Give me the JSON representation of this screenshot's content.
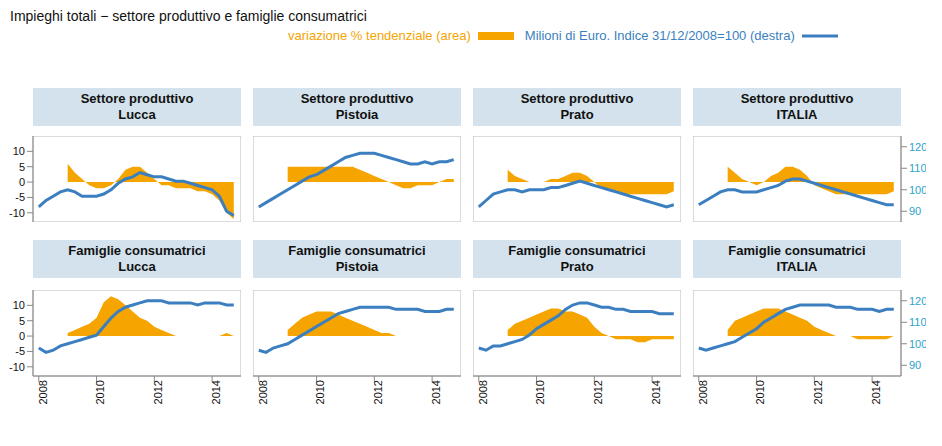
{
  "title": "Impieghi totali − settore produttivo e famiglie consumatrici",
  "chart_data": [
    {
      "title": "Settore produttivo\nLucca",
      "type": "area",
      "tick_labels": "y",
      "x": [
        2008,
        2008.25,
        2008.5,
        2008.75,
        2009,
        2009.25,
        2009.5,
        2009.75,
        2010,
        2010.25,
        2010.5,
        2010.75,
        2011,
        2011.25,
        2011.5,
        2011.75,
        2012,
        2012.25,
        2012.5,
        2012.75,
        2013,
        2013.25,
        2013.5,
        2013.75,
        2014,
        2014.25,
        2014.5,
        2014.75
      ],
      "xlim": [
        2007.8,
        2015
      ],
      "xticks": [
        2008,
        2010,
        2012,
        2014
      ],
      "ylim": [
        -13,
        15
      ],
      "yticks": [
        -10,
        -5,
        0,
        5,
        10
      ],
      "y2lim": [
        85,
        125
      ],
      "y2ticks": [
        90,
        100,
        110,
        120
      ],
      "series": [
        {
          "name": "variazione % tendenziale (area)",
          "type": "area",
          "color": "#f5a400",
          "values": [
            null,
            null,
            null,
            null,
            6,
            3,
            1,
            -1,
            -2,
            -2,
            -1,
            1,
            4,
            5,
            5,
            3,
            1,
            -1,
            -1,
            -2,
            -2,
            -2,
            -3,
            -3,
            -4,
            -6,
            -10,
            -12
          ]
        },
        {
          "name": "Milioni di Euro. Indice 31/12/2008=100 (destra)",
          "type": "line",
          "axis": "y2",
          "color": "#3b7fc0",
          "values": [
            92,
            95,
            97,
            99,
            100,
            99,
            97,
            97,
            97,
            98,
            100,
            103,
            105,
            106,
            108,
            107,
            106,
            106,
            105,
            104,
            104,
            103,
            102,
            101,
            100,
            97,
            90,
            88
          ]
        }
      ]
    },
    {
      "title": "Settore produttivo\nPistoia",
      "type": "area",
      "tick_labels": false,
      "x": [
        2008,
        2008.25,
        2008.5,
        2008.75,
        2009,
        2009.25,
        2009.5,
        2009.75,
        2010,
        2010.25,
        2010.5,
        2010.75,
        2011,
        2011.25,
        2011.5,
        2011.75,
        2012,
        2012.25,
        2012.5,
        2012.75,
        2013,
        2013.25,
        2013.5,
        2013.75,
        2014,
        2014.25,
        2014.5,
        2014.75
      ],
      "xlim": [
        2007.8,
        2015
      ],
      "xticks": [
        2008,
        2010,
        2012,
        2014
      ],
      "ylim": [
        -13,
        15
      ],
      "yticks": [
        -10,
        -5,
        0,
        5,
        10
      ],
      "y2lim": [
        85,
        125
      ],
      "y2ticks": [
        90,
        100,
        110,
        120
      ],
      "series": [
        {
          "name": "variazione % tendenziale (area)",
          "type": "area",
          "color": "#f5a400",
          "values": [
            null,
            null,
            null,
            null,
            5,
            5,
            5,
            5,
            5,
            5,
            5,
            5,
            5,
            5,
            4,
            3,
            2,
            1,
            0,
            -1,
            -2,
            -2,
            -1,
            -1,
            -1,
            0,
            1,
            1
          ]
        },
        {
          "name": "Milioni di Euro. Indice 31/12/2008=100 (destra)",
          "type": "line",
          "axis": "y2",
          "color": "#3b7fc0",
          "values": [
            92,
            94,
            96,
            98,
            100,
            102,
            104,
            106,
            107,
            109,
            111,
            113,
            115,
            116,
            117,
            117,
            117,
            116,
            115,
            114,
            113,
            112,
            112,
            113,
            112,
            113,
            113,
            114
          ]
        }
      ]
    },
    {
      "title": "Settore produttivo\nPrato",
      "type": "area",
      "tick_labels": false,
      "x": [
        2008,
        2008.25,
        2008.5,
        2008.75,
        2009,
        2009.25,
        2009.5,
        2009.75,
        2010,
        2010.25,
        2010.5,
        2010.75,
        2011,
        2011.25,
        2011.5,
        2011.75,
        2012,
        2012.25,
        2012.5,
        2012.75,
        2013,
        2013.25,
        2013.5,
        2013.75,
        2014,
        2014.25,
        2014.5,
        2014.75
      ],
      "xlim": [
        2007.8,
        2015
      ],
      "xticks": [
        2008,
        2010,
        2012,
        2014
      ],
      "ylim": [
        -13,
        15
      ],
      "yticks": [
        -10,
        -5,
        0,
        5,
        10
      ],
      "y2lim": [
        85,
        125
      ],
      "y2ticks": [
        90,
        100,
        110,
        120
      ],
      "series": [
        {
          "name": "variazione % tendenziale (area)",
          "type": "area",
          "color": "#f5a400",
          "values": [
            null,
            null,
            null,
            null,
            4,
            2,
            1,
            0,
            0,
            0,
            1,
            1,
            2,
            3,
            3,
            2,
            0,
            -2,
            -2,
            -3,
            -4,
            -4,
            -4,
            -4,
            -4,
            -4,
            -4,
            -3
          ]
        },
        {
          "name": "Milioni di Euro. Indice 31/12/2008=100 (destra)",
          "type": "line",
          "axis": "y2",
          "color": "#3b7fc0",
          "values": [
            92,
            95,
            98,
            99,
            100,
            100,
            99,
            100,
            100,
            100,
            101,
            101,
            102,
            103,
            104,
            103,
            102,
            101,
            100,
            99,
            98,
            97,
            96,
            95,
            94,
            93,
            92,
            93
          ]
        }
      ]
    },
    {
      "title": "Settore produttivo\nITALIA",
      "type": "area",
      "tick_labels": "y",
      "x": [
        2008,
        2008.25,
        2008.5,
        2008.75,
        2009,
        2009.25,
        2009.5,
        2009.75,
        2010,
        2010.25,
        2010.5,
        2010.75,
        2011,
        2011.25,
        2011.5,
        2011.75,
        2012,
        2012.25,
        2012.5,
        2012.75,
        2013,
        2013.25,
        2013.5,
        2013.75,
        2014,
        2014.25,
        2014.5,
        2014.75
      ],
      "xlim": [
        2007.8,
        2015
      ],
      "xticks": [
        2008,
        2010,
        2012,
        2014
      ],
      "ylim": [
        -13,
        15
      ],
      "yticks": [
        -10,
        -5,
        0,
        5,
        10
      ],
      "y2lim": [
        85,
        125
      ],
      "y2ticks": [
        90,
        100,
        110,
        120
      ],
      "series": [
        {
          "name": "variazione % tendenziale (area)",
          "type": "area",
          "color": "#f5a400",
          "values": [
            null,
            null,
            null,
            null,
            5,
            3,
            1,
            0,
            -1,
            0,
            2,
            3,
            5,
            5,
            4,
            2,
            -1,
            -2,
            -3,
            -4,
            -4,
            -4,
            -4,
            -4,
            -4,
            -4,
            -4,
            -3
          ]
        },
        {
          "name": "Milioni di Euro. Indice 31/12/2008=100 (destra)",
          "type": "line",
          "axis": "y2",
          "color": "#3b7fc0",
          "values": [
            93,
            95,
            97,
            99,
            100,
            100,
            99,
            99,
            99,
            100,
            101,
            102,
            104,
            105,
            105,
            104,
            103,
            102,
            101,
            100,
            99,
            98,
            97,
            96,
            95,
            94,
            93,
            93
          ]
        }
      ]
    },
    {
      "title": "Famiglie consumatrici\nLucca",
      "type": "area",
      "tick_labels": true,
      "x": [
        2008,
        2008.25,
        2008.5,
        2008.75,
        2009,
        2009.25,
        2009.5,
        2009.75,
        2010,
        2010.25,
        2010.5,
        2010.75,
        2011,
        2011.25,
        2011.5,
        2011.75,
        2012,
        2012.25,
        2012.5,
        2012.75,
        2013,
        2013.25,
        2013.5,
        2013.75,
        2014,
        2014.25,
        2014.5,
        2014.75
      ],
      "xlim": [
        2007.8,
        2015
      ],
      "xticks": [
        2008,
        2010,
        2012,
        2014
      ],
      "ylim": [
        -13,
        15
      ],
      "yticks": [
        -10,
        -5,
        0,
        5,
        10
      ],
      "y2lim": [
        85,
        125
      ],
      "y2ticks": [
        90,
        100,
        110,
        120
      ],
      "series": [
        {
          "name": "variazione % tendenziale (area)",
          "type": "area",
          "color": "#f5a400",
          "values": [
            null,
            null,
            null,
            null,
            1,
            2,
            3,
            4,
            6,
            11,
            13,
            12,
            10,
            8,
            6,
            5,
            3,
            2,
            1,
            0,
            0,
            0,
            0,
            0,
            0,
            0,
            1,
            0
          ]
        },
        {
          "name": "Milioni di Euro. Indice 31/12/2008=100 (destra)",
          "type": "line",
          "axis": "y2",
          "color": "#3b7fc0",
          "values": [
            98,
            96,
            97,
            99,
            100,
            101,
            102,
            103,
            104,
            108,
            112,
            115,
            117,
            118,
            119,
            120,
            120,
            120,
            119,
            119,
            119,
            119,
            118,
            119,
            119,
            119,
            118,
            118
          ]
        }
      ]
    },
    {
      "title": "Famiglie consumatrici\nPistoia",
      "type": "area",
      "tick_labels": "x",
      "x": [
        2008,
        2008.25,
        2008.5,
        2008.75,
        2009,
        2009.25,
        2009.5,
        2009.75,
        2010,
        2010.25,
        2010.5,
        2010.75,
        2011,
        2011.25,
        2011.5,
        2011.75,
        2012,
        2012.25,
        2012.5,
        2012.75,
        2013,
        2013.25,
        2013.5,
        2013.75,
        2014,
        2014.25,
        2014.5,
        2014.75
      ],
      "xlim": [
        2007.8,
        2015
      ],
      "xticks": [
        2008,
        2010,
        2012,
        2014
      ],
      "ylim": [
        -13,
        15
      ],
      "yticks": [
        -10,
        -5,
        0,
        5,
        10
      ],
      "y2lim": [
        85,
        125
      ],
      "y2ticks": [
        90,
        100,
        110,
        120
      ],
      "series": [
        {
          "name": "variazione % tendenziale (area)",
          "type": "area",
          "color": "#f5a400",
          "values": [
            null,
            null,
            null,
            null,
            2,
            4,
            6,
            7,
            8,
            8,
            8,
            7,
            6,
            5,
            4,
            3,
            2,
            1,
            1,
            0,
            0,
            0,
            0,
            0,
            0,
            0,
            0,
            0
          ]
        },
        {
          "name": "Milioni di Euro. Indice 31/12/2008=100 (destra)",
          "type": "line",
          "axis": "y2",
          "color": "#3b7fc0",
          "values": [
            97,
            96,
            98,
            99,
            100,
            102,
            104,
            106,
            108,
            110,
            112,
            114,
            115,
            116,
            117,
            117,
            117,
            117,
            117,
            116,
            116,
            116,
            116,
            115,
            115,
            115,
            116,
            116
          ]
        }
      ]
    },
    {
      "title": "Famiglie consumatrici\nPrato",
      "type": "area",
      "tick_labels": "x",
      "x": [
        2008,
        2008.25,
        2008.5,
        2008.75,
        2009,
        2009.25,
        2009.5,
        2009.75,
        2010,
        2010.25,
        2010.5,
        2010.75,
        2011,
        2011.25,
        2011.5,
        2011.75,
        2012,
        2012.25,
        2012.5,
        2012.75,
        2013,
        2013.25,
        2013.5,
        2013.75,
        2014,
        2014.25,
        2014.5,
        2014.75
      ],
      "xlim": [
        2007.8,
        2015
      ],
      "xticks": [
        2008,
        2010,
        2012,
        2014
      ],
      "ylim": [
        -13,
        15
      ],
      "yticks": [
        -10,
        -5,
        0,
        5,
        10
      ],
      "y2lim": [
        85,
        125
      ],
      "y2ticks": [
        90,
        100,
        110,
        120
      ],
      "series": [
        {
          "name": "variazione % tendenziale (area)",
          "type": "area",
          "color": "#f5a400",
          "values": [
            null,
            null,
            null,
            null,
            2,
            4,
            5,
            6,
            7,
            8,
            9,
            9,
            8,
            8,
            7,
            6,
            3,
            1,
            0,
            -1,
            -1,
            -1,
            -2,
            -2,
            -1,
            -1,
            -1,
            -1
          ]
        },
        {
          "name": "Milioni di Euro. Indice 31/12/2008=100 (destra)",
          "type": "line",
          "axis": "y2",
          "color": "#3b7fc0",
          "values": [
            98,
            97,
            99,
            99,
            100,
            101,
            102,
            104,
            107,
            109,
            111,
            113,
            116,
            118,
            119,
            119,
            118,
            117,
            117,
            116,
            116,
            115,
            115,
            115,
            115,
            114,
            114,
            114
          ]
        }
      ]
    },
    {
      "title": "Famiglie consumatrici\nITALIA",
      "type": "area",
      "tick_labels": true,
      "x": [
        2008,
        2008.25,
        2008.5,
        2008.75,
        2009,
        2009.25,
        2009.5,
        2009.75,
        2010,
        2010.25,
        2010.5,
        2010.75,
        2011,
        2011.25,
        2011.5,
        2011.75,
        2012,
        2012.25,
        2012.5,
        2012.75,
        2013,
        2013.25,
        2013.5,
        2013.75,
        2014,
        2014.25,
        2014.5,
        2014.75
      ],
      "xlim": [
        2007.8,
        2015
      ],
      "xticks": [
        2008,
        2010,
        2012,
        2014
      ],
      "ylim": [
        -13,
        15
      ],
      "yticks": [
        -10,
        -5,
        0,
        5,
        10
      ],
      "y2lim": [
        85,
        125
      ],
      "y2ticks": [
        90,
        100,
        110,
        120
      ],
      "series": [
        {
          "name": "variazione % tendenziale (area)",
          "type": "area",
          "color": "#f5a400",
          "values": [
            null,
            null,
            null,
            null,
            2,
            5,
            6,
            7,
            8,
            9,
            9,
            9,
            8,
            7,
            6,
            5,
            3,
            2,
            1,
            0,
            0,
            0,
            -1,
            -1,
            -1,
            -1,
            -1,
            0
          ]
        },
        {
          "name": "Milioni di Euro. Indice 31/12/2008=100 (destra)",
          "type": "line",
          "axis": "y2",
          "color": "#3b7fc0",
          "values": [
            98,
            97,
            98,
            99,
            100,
            101,
            103,
            105,
            107,
            110,
            112,
            114,
            116,
            117,
            118,
            118,
            118,
            118,
            118,
            117,
            117,
            117,
            116,
            116,
            116,
            115,
            116,
            116
          ]
        }
      ]
    }
  ]
}
